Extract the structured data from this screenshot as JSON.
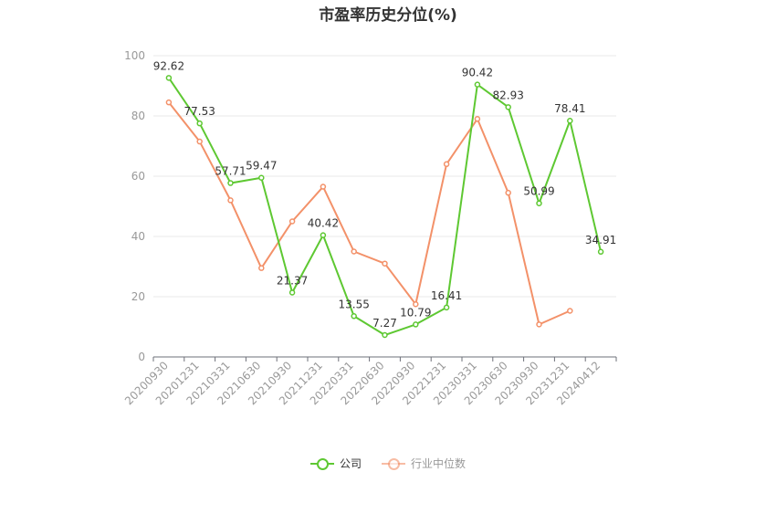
{
  "chart_data": {
    "type": "line",
    "title": "市盈率历史分位(%)",
    "categories": [
      "20200930",
      "20201231",
      "20210331",
      "20210630",
      "20210930",
      "20211231",
      "20220331",
      "20220630",
      "20220930",
      "20221231",
      "20230331",
      "20230630",
      "20230930",
      "20231231",
      "20240412"
    ],
    "ylim": [
      0,
      100
    ],
    "yticks": [
      0,
      20,
      40,
      60,
      80,
      100
    ],
    "grid": true,
    "legend_position": "bottom-center",
    "series": [
      {
        "name": "公司",
        "color": "#5ec832",
        "values": [
          92.62,
          77.53,
          57.71,
          59.47,
          21.37,
          40.42,
          13.55,
          7.27,
          10.79,
          16.41,
          90.42,
          82.93,
          50.99,
          78.41,
          34.91
        ],
        "labels": [
          "92.62",
          "77.53",
          "57.71",
          "59.47",
          "21.37",
          "40.42",
          "13.55",
          "7.27",
          "10.79",
          "16.41",
          "90.42",
          "82.93",
          "50.99",
          "78.41",
          "34.91"
        ]
      },
      {
        "name": "行业中位数",
        "color": "#f39169",
        "values": [
          84.5,
          71.5,
          52,
          29.5,
          45,
          56.5,
          35,
          31,
          17.5,
          64,
          79,
          54.5,
          10.8,
          15.3,
          null
        ]
      }
    ]
  }
}
